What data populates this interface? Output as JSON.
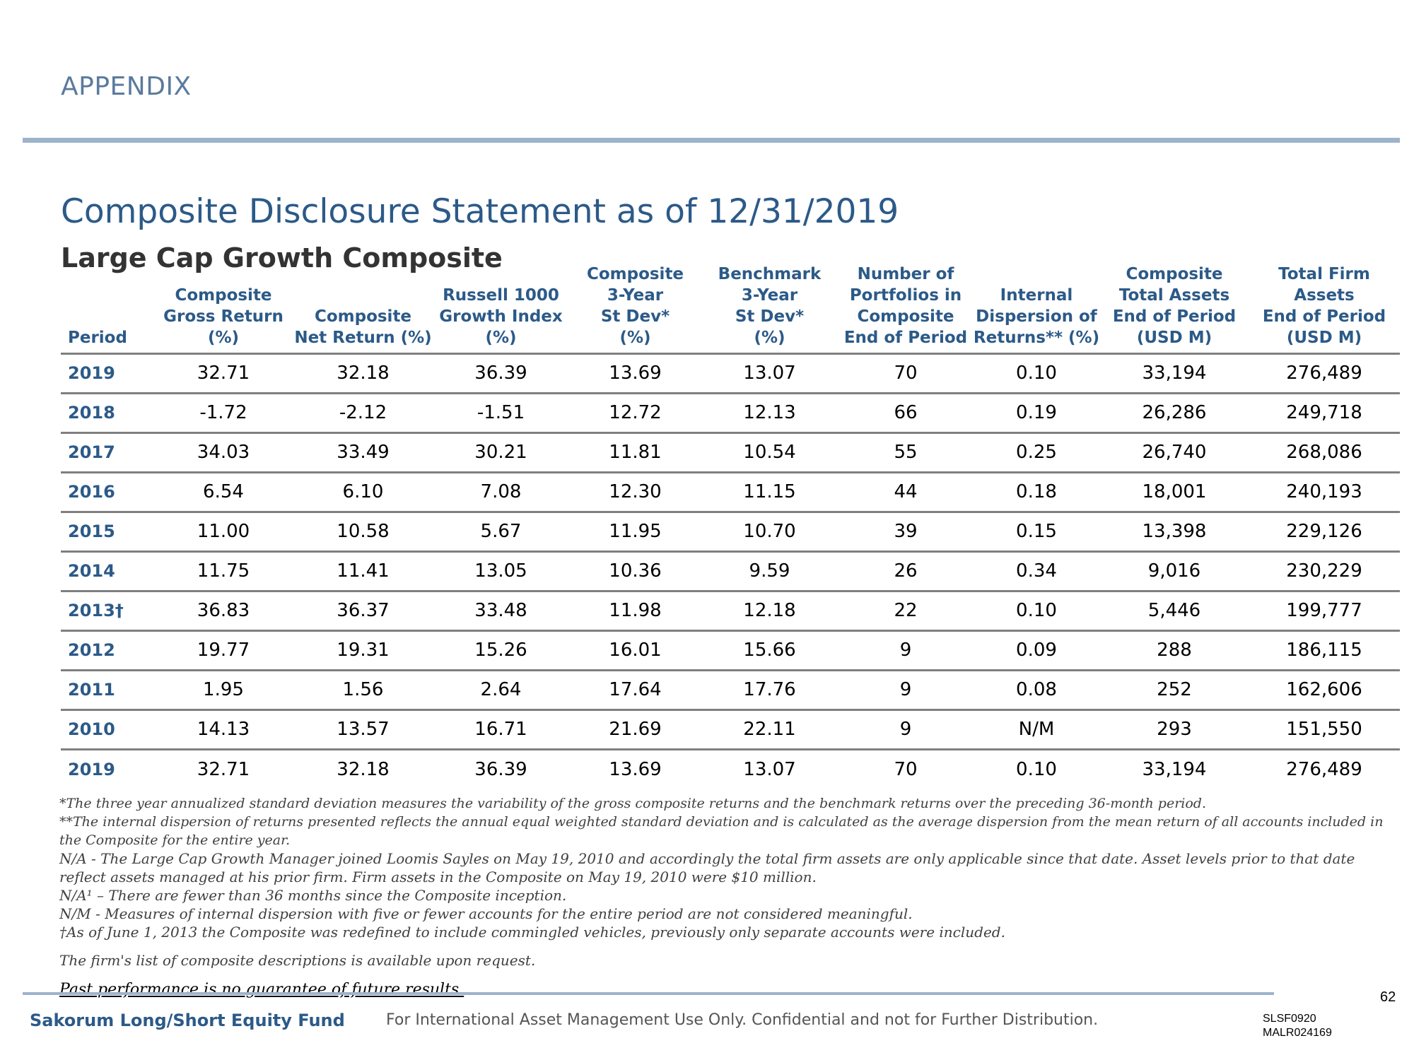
{
  "header": {
    "section": "APPENDIX"
  },
  "title": "Composite Disclosure Statement as of 12/31/2019",
  "subtitle": "Large Cap Growth Composite",
  "table": {
    "columns": [
      [
        "Period"
      ],
      [
        "Composite",
        "Gross Return",
        "(%)"
      ],
      [
        "Composite",
        "Net Return (%)"
      ],
      [
        "Russell 1000",
        "Growth Index",
        "(%)"
      ],
      [
        "Composite",
        "3-Year",
        "St Dev*",
        "(%)"
      ],
      [
        "Benchmark",
        "3-Year",
        "St Dev*",
        "(%)"
      ],
      [
        "Number of",
        "Portfolios in",
        "Composite",
        "End of Period"
      ],
      [
        "Internal",
        "Dispersion of",
        "Returns** (%)"
      ],
      [
        "Composite",
        "Total Assets",
        "End of Period",
        "(USD M)"
      ],
      [
        "Total Firm",
        "Assets",
        "End of Period",
        "(USD M)"
      ]
    ],
    "rows": [
      [
        "2019",
        "32.71",
        "32.18",
        "36.39",
        "13.69",
        "13.07",
        "70",
        "0.10",
        "33,194",
        "276,489"
      ],
      [
        "2018",
        "-1.72",
        "-2.12",
        "-1.51",
        "12.72",
        "12.13",
        "66",
        "0.19",
        "26,286",
        "249,718"
      ],
      [
        "2017",
        "34.03",
        "33.49",
        "30.21",
        "11.81",
        "10.54",
        "55",
        "0.25",
        "26,740",
        "268,086"
      ],
      [
        "2016",
        "6.54",
        "6.10",
        "7.08",
        "12.30",
        "11.15",
        "44",
        "0.18",
        "18,001",
        "240,193"
      ],
      [
        "2015",
        "11.00",
        "10.58",
        "5.67",
        "11.95",
        "10.70",
        "39",
        "0.15",
        "13,398",
        "229,126"
      ],
      [
        "2014",
        "11.75",
        "11.41",
        "13.05",
        "10.36",
        "9.59",
        "26",
        "0.34",
        "9,016",
        "230,229"
      ],
      [
        "2013†",
        "36.83",
        "36.37",
        "33.48",
        "11.98",
        "12.18",
        "22",
        "0.10",
        "5,446",
        "199,777"
      ],
      [
        "2012",
        "19.77",
        "19.31",
        "15.26",
        "16.01",
        "15.66",
        "9",
        "0.09",
        "288",
        "186,115"
      ],
      [
        "2011",
        "1.95",
        "1.56",
        "2.64",
        "17.64",
        "17.76",
        "9",
        "0.08",
        "252",
        "162,606"
      ],
      [
        "2010",
        "14.13",
        "13.57",
        "16.71",
        "21.69",
        "22.11",
        "9",
        "N/M",
        "293",
        "151,550"
      ],
      [
        "2019",
        "32.71",
        "32.18",
        "36.39",
        "13.69",
        "13.07",
        "70",
        "0.10",
        "33,194",
        "276,489"
      ]
    ]
  },
  "footnotes": {
    "std_dev": "*The three year annualized standard deviation measures the variability of the gross composite returns and the benchmark returns over the preceding 36-month period.",
    "dispersion": "**The internal dispersion of returns presented reflects the annual equal weighted standard deviation and is calculated as the average dispersion from the mean return of all accounts included in the Composite for the entire year.",
    "na_manager": "N/A - The Large Cap Growth Manager joined Loomis Sayles on May 19, 2010 and accordingly the total firm assets are only applicable since that date. Asset levels prior to that date reflect assets managed at his prior firm. Firm assets in the Composite on May 19, 2010 were $10 million.",
    "na1": "N/A¹ – There are fewer than 36 months since the Composite inception.",
    "nm": "N/M - Measures of internal dispersion with five or fewer accounts for the entire period are not considered meaningful.",
    "dagger": "†As of June 1, 2013 the Composite was redefined to include commingled vehicles, previously only separate accounts were included.",
    "list": "The firm's list of composite descriptions is available upon request.",
    "performance": "Past performance is no guarantee of future results."
  },
  "footer": {
    "page_number": "62",
    "fund_name": "Sakorum Long/Short Equity Fund",
    "confidential": "For International Asset Management Use Only. Confidential and not for Further Distribution.",
    "code1": "SLSF0920",
    "code2": "MALR024169"
  }
}
